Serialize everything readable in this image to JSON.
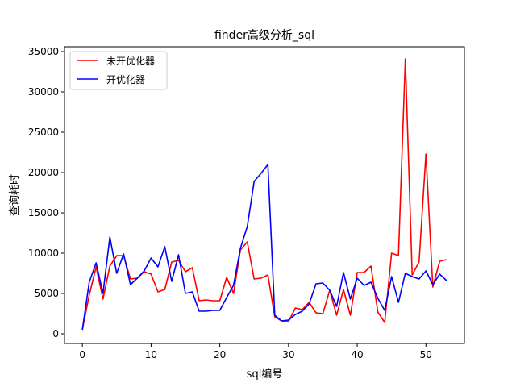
{
  "chart_data": {
    "type": "line",
    "title": "finder高级分析_sql",
    "xlabel": "sql编号",
    "ylabel": "查询耗时",
    "xlim": [
      -2.6,
      55.6
    ],
    "ylim": [
      -1200,
      35600
    ],
    "x_ticks": [
      0,
      10,
      20,
      30,
      40,
      50
    ],
    "y_ticks": [
      0,
      5000,
      10000,
      15000,
      20000,
      25000,
      30000,
      35000
    ],
    "x_tick_labels": [
      "0",
      "10",
      "20",
      "30",
      "40",
      "50"
    ],
    "y_tick_labels": [
      "0",
      "5000",
      "10000",
      "15000",
      "20000",
      "25000",
      "30000",
      "35000"
    ],
    "grid": false,
    "legend_position": "top-left",
    "x": [
      0,
      1,
      2,
      3,
      4,
      5,
      6,
      7,
      8,
      9,
      10,
      11,
      12,
      13,
      14,
      15,
      16,
      17,
      18,
      19,
      20,
      21,
      22,
      23,
      24,
      25,
      26,
      27,
      28,
      29,
      30,
      31,
      32,
      33,
      34,
      35,
      36,
      37,
      38,
      39,
      40,
      41,
      42,
      43,
      44,
      45,
      46,
      47,
      48,
      49,
      50,
      51,
      52,
      53
    ],
    "series": [
      {
        "name": "未开优化器",
        "color": "#ff0000",
        "values": [
          500,
          4800,
          8300,
          4300,
          8400,
          9700,
          9700,
          6800,
          6900,
          7700,
          7400,
          5200,
          5500,
          8900,
          9100,
          7700,
          8200,
          4100,
          4200,
          4100,
          4100,
          7000,
          5000,
          10400,
          11400,
          6800,
          6900,
          7300,
          2100,
          1600,
          1500,
          3200,
          3000,
          3900,
          2600,
          2500,
          5400,
          2300,
          5500,
          2300,
          7600,
          7600,
          8400,
          2700,
          1400,
          10000,
          9700,
          34100,
          7300,
          8900,
          22300,
          5800,
          9000,
          9200
        ]
      },
      {
        "name": "开优化器",
        "color": "#0000ff",
        "values": [
          500,
          6400,
          8800,
          5000,
          12000,
          7500,
          9900,
          6100,
          6900,
          7800,
          9400,
          8300,
          10800,
          6500,
          9800,
          5000,
          5200,
          2800,
          2800,
          2900,
          2900,
          4500,
          6000,
          10600,
          13300,
          18900,
          19900,
          21000,
          2300,
          1600,
          1700,
          2400,
          2800,
          3700,
          6200,
          6300,
          5400,
          3400,
          7600,
          4300,
          6900,
          6000,
          6400,
          4400,
          2900,
          7100,
          3900,
          7500,
          7100,
          6800,
          7800,
          6100,
          7400,
          6600
        ]
      }
    ]
  }
}
